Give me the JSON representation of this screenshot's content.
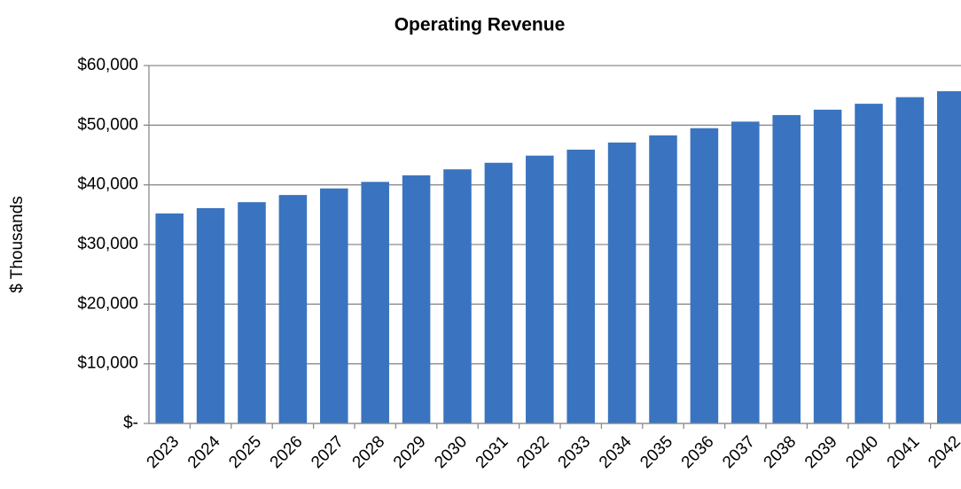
{
  "chart_data": {
    "type": "bar",
    "title": "Operating Revenue",
    "y_label": "$ Thousands",
    "categories": [
      "2023",
      "2024",
      "2025",
      "2026",
      "2027",
      "2028",
      "2029",
      "2030",
      "2031",
      "2032",
      "2033",
      "2034",
      "2035",
      "2036",
      "2037",
      "2038",
      "2039",
      "2040",
      "2041",
      "2042"
    ],
    "values": [
      35200,
      36100,
      37100,
      38300,
      39400,
      40500,
      41600,
      42600,
      43700,
      44900,
      45900,
      47100,
      48300,
      49500,
      50600,
      51700,
      52600,
      53600,
      54700,
      55700
    ],
    "color": "#3a74c0",
    "ylim": [
      0,
      60000
    ],
    "yticks": [
      {
        "value": 0,
        "label": "$-"
      },
      {
        "value": 10000,
        "label": "$10,000"
      },
      {
        "value": 20000,
        "label": "$20,000"
      },
      {
        "value": 30000,
        "label": "$30,000"
      },
      {
        "value": 40000,
        "label": "$40,000"
      },
      {
        "value": 50000,
        "label": "$50,000"
      },
      {
        "value": 60000,
        "label": "$60,000"
      }
    ],
    "grid": true
  }
}
